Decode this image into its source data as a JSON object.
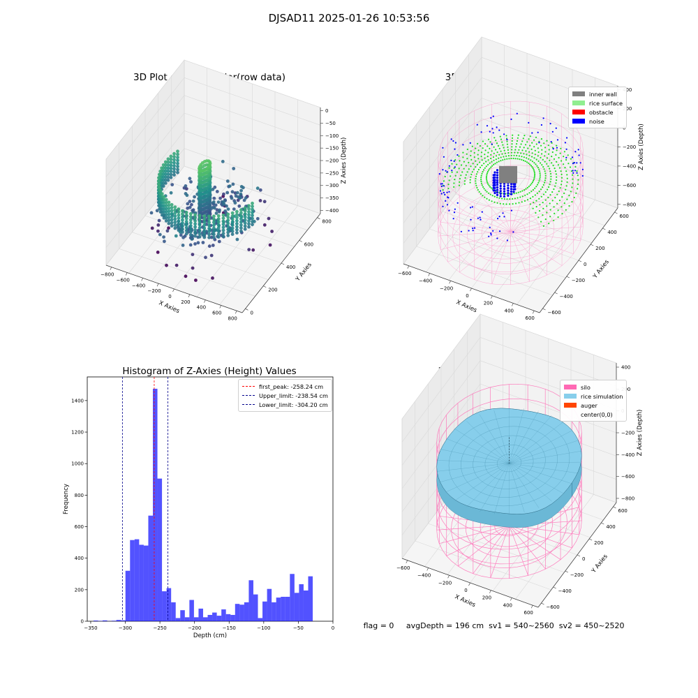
{
  "suptitle": "DJSAD11 2025-01-26 10:53:56",
  "status": {
    "flag": "flag = 0",
    "avg_depth": "avgDepth = 196 cm",
    "sv1": "sv1 = 540~2560",
    "sv2": "sv2 = 450~2520"
  },
  "chart_data": [
    {
      "type": "scatter",
      "projection": "3d",
      "title": "3D Plot of Silo Interior(row data)",
      "xlabel": "X Axies",
      "ylabel": "Y Axies",
      "zlabel": "Z Axies (Depth)",
      "xticks": [
        "−800",
        "−600",
        "−400",
        "−200",
        "0",
        "200",
        "400",
        "600",
        "800"
      ],
      "yticks": [
        "0",
        "200",
        "400",
        "600",
        "800"
      ],
      "zticks": [
        "0",
        "−50",
        "−100",
        "−150",
        "−200",
        "−250",
        "−300",
        "−350",
        "−400"
      ],
      "xlim": [
        -800,
        800
      ],
      "ylim": [
        -100,
        800
      ],
      "zlim": [
        -420,
        0
      ],
      "colormap": "viridis",
      "grid": true,
      "groups": [
        {
          "kind": "wall-ring",
          "radius": 560,
          "z": -215,
          "theta_start_deg": 160,
          "theta_end_deg": 345,
          "layers": 8,
          "dz": 12,
          "points_per_layer": 38
        },
        {
          "kind": "column",
          "x": -80,
          "y": 330,
          "radius": 45,
          "z_top": -130,
          "z_bottom": -330,
          "layers": 14
        },
        {
          "kind": "floor-disk",
          "radius": 430,
          "z": -270,
          "points": 180
        },
        {
          "kind": "scatter-noise",
          "radius": 620,
          "z_min": -420,
          "z_max": -230,
          "points": 70
        }
      ]
    },
    {
      "type": "scatter",
      "projection": "3d",
      "title": "3D classify of Silo Interior",
      "xlabel": "X Axies",
      "ylabel": "Y Axies",
      "zlabel": "Z Axies (Depth)",
      "xticks": [
        "−600",
        "−400",
        "−200",
        "0",
        "200",
        "400",
        "600"
      ],
      "yticks": [
        "−600",
        "−400",
        "−200",
        "0",
        "200",
        "400",
        "600"
      ],
      "zticks": [
        "400",
        "200",
        "0",
        "−200",
        "−400",
        "−600",
        "−800"
      ],
      "xlim": [
        -650,
        650
      ],
      "ylim": [
        -650,
        650
      ],
      "zlim": [
        -900,
        450
      ],
      "grid": true,
      "legend_position": "top-right",
      "legend": [
        {
          "label": "inner wall",
          "color": "#808080"
        },
        {
          "label": "rice surface",
          "color": "#90ee90"
        },
        {
          "label": "obstacle",
          "color": "#ff0000"
        },
        {
          "label": "noise",
          "color": "#0000ff"
        }
      ],
      "silo": {
        "radius": 600,
        "z_top": 0,
        "z_bottom": -850,
        "color": "#ff69b4"
      },
      "surface_z": -240
    },
    {
      "type": "bar",
      "title": "Histogram of Z-Axies (Height) Values",
      "xlabel": "Depth (cm)",
      "ylabel": "Frequency",
      "xlim": [
        -355,
        0
      ],
      "ylim": [
        0,
        1550
      ],
      "xticks": [
        -350,
        -300,
        -250,
        -200,
        -150,
        -100,
        -50,
        0
      ],
      "yticks": [
        0,
        200,
        400,
        600,
        800,
        1000,
        1200,
        1400
      ],
      "bar_color": "#0000ff",
      "bin_edges_start": -346,
      "bin_width": 6.6,
      "values": [
        4,
        2,
        5,
        1,
        3,
        8,
        6,
        320,
        515,
        520,
        485,
        480,
        670,
        1475,
        905,
        190,
        210,
        120,
        20,
        70,
        25,
        135,
        25,
        80,
        25,
        40,
        55,
        35,
        75,
        45,
        40,
        110,
        105,
        120,
        260,
        170,
        20,
        125,
        205,
        120,
        150,
        155,
        155,
        300,
        180,
        235,
        195,
        285
      ],
      "lines": [
        {
          "label": "first_peak: -258.24 cm",
          "x": -258.24,
          "color": "#ff0000"
        },
        {
          "label": "Upper_limit: -238.54 cm",
          "x": -238.54,
          "color": "#00008b"
        },
        {
          "label": "Lower_limit: -304.20 cm",
          "x": -304.2,
          "color": "#00008b"
        }
      ],
      "legend_position": "top-right"
    },
    {
      "type": "area",
      "projection": "3d",
      "title": "3D simulation of Silo Interior",
      "xlabel": "X Axies",
      "ylabel": "Y Axies",
      "zlabel": "Z Axies (Depth)",
      "xticks": [
        "−600",
        "−400",
        "−200",
        "0",
        "200",
        "400",
        "600"
      ],
      "yticks": [
        "−600",
        "−400",
        "−200",
        "0",
        "200",
        "400",
        "600"
      ],
      "zticks": [
        "400",
        "200",
        "0",
        "−200",
        "−400",
        "−600",
        "−800"
      ],
      "xlim": [
        -650,
        650
      ],
      "ylim": [
        -650,
        650
      ],
      "zlim": [
        -900,
        450
      ],
      "grid": true,
      "legend_position": "top-right",
      "legend": [
        {
          "label": "silo",
          "color": "#ff69b4"
        },
        {
          "label": "rice simulation",
          "color": "#87ceeb"
        },
        {
          "label": "auger",
          "color": "#ff4500"
        },
        {
          "label": "center(0,0)",
          "color": "none"
        }
      ],
      "silo": {
        "radius": 600,
        "z_top": 0,
        "z_bottom": -850,
        "color": "#ff69b4"
      },
      "surface_z": -230
    }
  ]
}
